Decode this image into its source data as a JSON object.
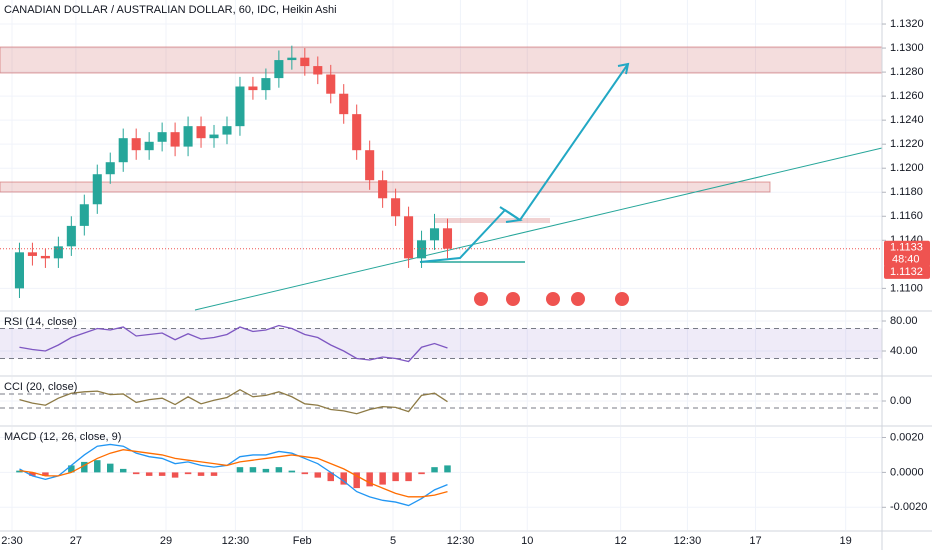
{
  "chart_data": [
    {
      "type": "candlestick",
      "title": "CANADIAN DOLLAR / AUSTRALIAN DOLLAR, 60, IDC, Heikin Ashi",
      "x": [
        3,
        5,
        7,
        9,
        11,
        13,
        15,
        17,
        19,
        21,
        23,
        25,
        27,
        29,
        31,
        33,
        35,
        37,
        39,
        41,
        43,
        45,
        47,
        49,
        51,
        53,
        55,
        57,
        59,
        61,
        63,
        65,
        67,
        69
      ],
      "candles": [
        [
          1.11,
          1.1138,
          1.1092,
          1.113
        ],
        [
          1.113,
          1.1138,
          1.1119,
          1.1127
        ],
        [
          1.1127,
          1.1133,
          1.1117,
          1.1125
        ],
        [
          1.1125,
          1.1143,
          1.1117,
          1.1135
        ],
        [
          1.1135,
          1.116,
          1.1127,
          1.1152
        ],
        [
          1.1152,
          1.1178,
          1.1144,
          1.117
        ],
        [
          1.117,
          1.1203,
          1.1162,
          1.1195
        ],
        [
          1.1195,
          1.1213,
          1.1187,
          1.1205
        ],
        [
          1.1205,
          1.1233,
          1.1197,
          1.1225
        ],
        [
          1.1225,
          1.1233,
          1.1207,
          1.1215
        ],
        [
          1.1215,
          1.123,
          1.1207,
          1.1222
        ],
        [
          1.1222,
          1.1238,
          1.1214,
          1.123
        ],
        [
          1.123,
          1.1238,
          1.121,
          1.1218
        ],
        [
          1.1218,
          1.1243,
          1.121,
          1.1235
        ],
        [
          1.1235,
          1.1243,
          1.1217,
          1.1225
        ],
        [
          1.1225,
          1.1236,
          1.1217,
          1.1228
        ],
        [
          1.1228,
          1.1243,
          1.122,
          1.1235
        ],
        [
          1.1235,
          1.1276,
          1.1227,
          1.1268
        ],
        [
          1.1268,
          1.1276,
          1.1257,
          1.1265
        ],
        [
          1.1265,
          1.1283,
          1.1257,
          1.1275
        ],
        [
          1.1275,
          1.1298,
          1.1267,
          1.129
        ],
        [
          1.129,
          1.1302,
          1.1282,
          1.1292
        ],
        [
          1.1292,
          1.13,
          1.1277,
          1.1285
        ],
        [
          1.1285,
          1.1293,
          1.127,
          1.1278
        ],
        [
          1.1278,
          1.1286,
          1.1254,
          1.1262
        ],
        [
          1.1262,
          1.127,
          1.1237,
          1.1245
        ],
        [
          1.1245,
          1.1253,
          1.1207,
          1.1215
        ],
        [
          1.1215,
          1.1223,
          1.1182,
          1.119
        ],
        [
          1.119,
          1.1198,
          1.1167,
          1.1175
        ],
        [
          1.1175,
          1.1183,
          1.1152,
          1.116
        ],
        [
          1.116,
          1.1168,
          1.1117,
          1.1125
        ],
        [
          1.1125,
          1.1148,
          1.1117,
          1.114
        ],
        [
          1.114,
          1.1162,
          1.1132,
          1.115
        ],
        [
          1.115,
          1.1158,
          1.1125,
          1.1133
        ]
      ],
      "up_color": "#26a69a",
      "down_color": "#ef5350",
      "xlim": [
        0,
        136
      ],
      "xticks": [
        {
          "value": 1.85,
          "label": "2:30"
        },
        {
          "value": 11.7,
          "label": "27"
        },
        {
          "value": 25.6,
          "label": "29"
        },
        {
          "value": 36.3,
          "label": "12:30"
        },
        {
          "value": 46.6,
          "label": "Feb"
        },
        {
          "value": 60.6,
          "label": "5"
        },
        {
          "value": 71,
          "label": "12:30"
        },
        {
          "value": 81.3,
          "label": "10"
        },
        {
          "value": 95.7,
          "label": "12"
        },
        {
          "value": 106,
          "label": "12:30"
        },
        {
          "value": 116.5,
          "label": "17"
        },
        {
          "value": 130.4,
          "label": "19"
        }
      ],
      "ylim": [
        1.1082,
        1.134
      ],
      "yticks": [
        {
          "value": 1.132,
          "label": "1.1320"
        },
        {
          "value": 1.13,
          "label": "1.1300"
        },
        {
          "value": 1.128,
          "label": "1.1280"
        },
        {
          "value": 1.126,
          "label": "1.1260"
        },
        {
          "value": 1.124,
          "label": "1.1240"
        },
        {
          "value": 1.122,
          "label": "1.1220"
        },
        {
          "value": 1.12,
          "label": "1.1200"
        },
        {
          "value": 1.118,
          "label": "1.1180"
        },
        {
          "value": 1.116,
          "label": "1.1160"
        },
        {
          "value": 1.114,
          "label": "1.1140"
        },
        {
          "value": 1.11,
          "label": "1.1100"
        }
      ],
      "price_labels": [
        {
          "value": 1.1133,
          "label": "1.1133"
        },
        {
          "value": 1.1132,
          "label": "1.1132"
        }
      ],
      "countdown": "48:40",
      "grid": true
    },
    {
      "type": "line",
      "title": "RSI (14, close)",
      "color": "#7e57c2",
      "values": [
        45,
        42,
        40,
        48,
        58,
        64,
        70,
        68,
        72,
        60,
        62,
        64,
        55,
        63,
        56,
        58,
        62,
        72,
        66,
        68,
        74,
        70,
        62,
        58,
        48,
        40,
        30,
        28,
        32,
        30,
        26,
        45,
        50,
        44
      ],
      "bands": [
        30,
        70
      ],
      "ylim": [
        8,
        92
      ],
      "yticks": [
        {
          "value": 80,
          "label": "80.00"
        },
        {
          "value": 40,
          "label": "40.00"
        }
      ]
    },
    {
      "type": "line",
      "title": "CCI (20, close)",
      "color": "#8d7a45",
      "values": [
        20,
        -30,
        -60,
        40,
        110,
        130,
        140,
        90,
        100,
        -20,
        20,
        40,
        -50,
        60,
        -40,
        10,
        50,
        160,
        60,
        80,
        130,
        60,
        -40,
        -60,
        -120,
        -140,
        -180,
        -120,
        -80,
        -90,
        -150,
        80,
        110,
        -10
      ],
      "bands": [
        -100,
        100
      ],
      "ylim": [
        -340,
        340
      ],
      "yticks": [
        {
          "value": 0,
          "label": "0.00"
        }
      ]
    },
    {
      "type": "macd",
      "title": "MACD (12, 26, close, 9)",
      "series": [
        {
          "name": "MACD",
          "color": "#2196f3",
          "values": [
            0.0002,
            -0.0002,
            -0.0004,
            -0.0002,
            0.0004,
            0.001,
            0.0015,
            0.0016,
            0.0015,
            0.0011,
            0.0009,
            0.0008,
            0.0005,
            0.0006,
            0.0004,
            0.0003,
            0.0004,
            0.0009,
            0.001,
            0.001,
            0.0012,
            0.0011,
            0.0008,
            0.0005,
            0.0,
            -0.0005,
            -0.0011,
            -0.0014,
            -0.0016,
            -0.0017,
            -0.0019,
            -0.0015,
            -0.001,
            -0.0007
          ]
        },
        {
          "name": "Signal",
          "color": "#ff6d00",
          "values": [
            0.0001,
            0.0,
            -0.0002,
            -0.0002,
            0.0,
            0.0004,
            0.0008,
            0.0011,
            0.0013,
            0.0012,
            0.0011,
            0.001,
            0.0008,
            0.0007,
            0.0006,
            0.0005,
            0.0004,
            0.0006,
            0.0007,
            0.0008,
            0.0009,
            0.001,
            0.0009,
            0.0008,
            0.0005,
            0.0002,
            -0.0002,
            -0.0006,
            -0.0009,
            -0.0012,
            -0.0014,
            -0.0014,
            -0.0013,
            -0.0011
          ]
        }
      ],
      "histogram": [
        0.0001,
        -0.0002,
        -0.0002,
        0.0,
        0.0004,
        0.0006,
        0.0007,
        0.0005,
        0.0002,
        -0.0001,
        -0.0002,
        -0.0002,
        -0.0003,
        -0.0001,
        -0.0002,
        -0.0002,
        0.0,
        0.0003,
        0.0003,
        0.0002,
        0.0003,
        0.0001,
        -0.0001,
        -0.0003,
        -0.0005,
        -0.0007,
        -0.0009,
        -0.0008,
        -0.0007,
        -0.0005,
        -0.0005,
        -0.0001,
        0.0003,
        0.0004
      ],
      "ylim": [
        -0.0033,
        0.0026
      ],
      "yticks": [
        {
          "value": 0.002,
          "label": "0.0020"
        },
        {
          "value": 0,
          "label": "0.0000"
        },
        {
          "value": -0.002,
          "label": "-0.0020"
        }
      ]
    }
  ]
}
